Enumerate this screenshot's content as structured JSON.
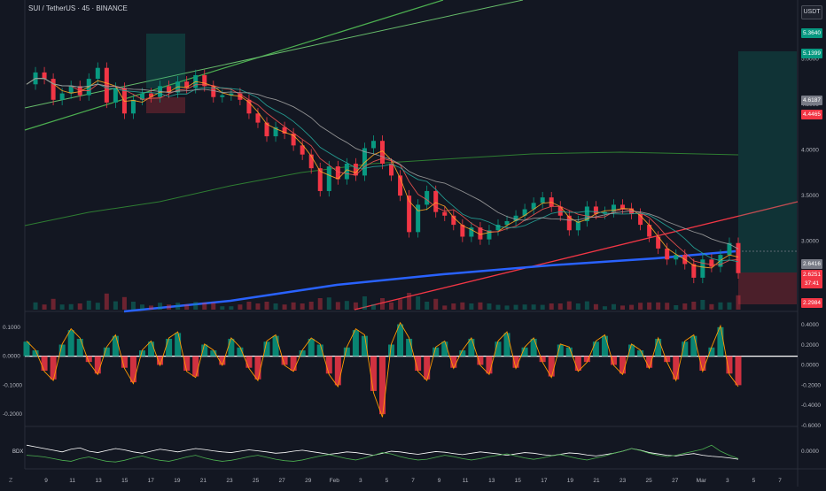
{
  "header": {
    "title": "SUI / TetherUS · 45 · BINANCE",
    "currency": "USDT"
  },
  "badges": [
    {
      "text": "5.3640",
      "color": "#089981"
    },
    {
      "text": "5.1399",
      "color": "#089981"
    },
    {
      "text": "4.6187",
      "color": "#787b86"
    },
    {
      "text": "4.4465",
      "color": "#f23645"
    },
    {
      "text": "2.6416",
      "color": "#787b86"
    },
    {
      "text": "2.6251",
      "color": "#f23645"
    },
    {
      "text": "37:41",
      "color": "#f23645"
    },
    {
      "text": "2.2984",
      "color": "#f23645"
    }
  ],
  "colors": {
    "background": "#131722",
    "up": "#089981",
    "down": "#f23645",
    "blue_line": "#2962ff",
    "green_line": "#4caf50"
  },
  "chart_data": [
    {
      "type": "line",
      "panel": "price",
      "x_tick_labels": [
        "9",
        "11",
        "13",
        "15",
        "17",
        "19",
        "21",
        "23",
        "25",
        "27",
        "29",
        "Feb",
        "3",
        "5",
        "7",
        "9",
        "11",
        "13",
        "15",
        "17",
        "19",
        "21",
        "23",
        "25",
        "27",
        "Mar",
        "3",
        "5",
        "7"
      ],
      "y_tick_labels": [
        "5.0000",
        "4.5000",
        "4.0000",
        "3.5000",
        "3.0000"
      ],
      "y_range": [
        2.25,
        5.45
      ],
      "series": [
        {
          "values": [
            4.72,
            4.85,
            4.78,
            4.55,
            4.62,
            4.7,
            4.6,
            4.78,
            4.9,
            4.52,
            4.68,
            4.4,
            4.55,
            4.62,
            4.58,
            4.7,
            4.63,
            4.75,
            4.68,
            4.82,
            4.7,
            4.58,
            4.6,
            4.62,
            4.55,
            4.4,
            4.3,
            4.15,
            4.25,
            4.18,
            4.05,
            3.95,
            3.8,
            3.55,
            3.82,
            3.68,
            3.85,
            3.72,
            4.02,
            4.1,
            3.85,
            3.72,
            3.5,
            3.1,
            3.4,
            3.55,
            3.32,
            3.28,
            3.18,
            3.05,
            3.15,
            3.02,
            3.12,
            3.18,
            3.22,
            3.28,
            3.35,
            3.42,
            3.48,
            3.38,
            3.28,
            3.12,
            3.22,
            3.38,
            3.3,
            3.32,
            3.4,
            3.36,
            3.3,
            3.18,
            3.05,
            2.92,
            2.8,
            2.85,
            2.75,
            2.6,
            2.8,
            2.72,
            2.85,
            2.98,
            2.65
          ]
        }
      ],
      "annotations": [
        "5.0000",
        "2.6416",
        "2.6251"
      ]
    },
    {
      "type": "bar",
      "panel": "oscillator",
      "y_tick_labels_left": [
        "0.1000",
        "0.0000",
        "-0.1000",
        "-0.2000"
      ],
      "y_tick_labels_right": [
        "0.4000",
        "0.2000",
        "0.0000",
        "-0.2000",
        "-0.4000",
        "-0.6000"
      ],
      "y_range": [
        -0.23,
        0.13
      ],
      "values": [
        0.05,
        0.02,
        -0.05,
        -0.08,
        0.04,
        0.09,
        0.06,
        -0.02,
        -0.06,
        0.03,
        0.07,
        -0.04,
        -0.09,
        0.02,
        0.05,
        -0.03,
        0.06,
        0.08,
        -0.05,
        -0.07,
        0.04,
        0.02,
        -0.03,
        0.06,
        0.03,
        -0.04,
        -0.08,
        0.05,
        0.07,
        -0.03,
        -0.05,
        0.02,
        0.06,
        0.04,
        -0.06,
        -0.1,
        0.03,
        0.09,
        0.07,
        -0.12,
        -0.2,
        0.04,
        0.11,
        0.06,
        -0.05,
        -0.08,
        0.03,
        0.05,
        -0.04,
        0.02,
        0.06,
        -0.03,
        -0.06,
        0.05,
        0.08,
        -0.04,
        0.03,
        0.06,
        -0.02,
        -0.07,
        0.04,
        0.03,
        -0.05,
        -0.02,
        0.05,
        0.07,
        -0.03,
        -0.06,
        0.04,
        0.02,
        -0.04,
        0.06,
        -0.02,
        -0.08,
        0.05,
        0.07,
        -0.05,
        0.03,
        0.1,
        -0.06,
        -0.1
      ]
    },
    {
      "type": "line",
      "panel": "lower",
      "label": "BDX",
      "y_tick_labels_right": [
        "0.0000"
      ],
      "series": [
        {
          "values": [
            0.6,
            0.55,
            0.5,
            0.45,
            0.4,
            0.48,
            0.52,
            0.42,
            0.38,
            0.44,
            0.5,
            0.46,
            0.4,
            0.36,
            0.42,
            0.48,
            0.44,
            0.4,
            0.45,
            0.5,
            0.47,
            0.43,
            0.4,
            0.38,
            0.42,
            0.46,
            0.43,
            0.4,
            0.36,
            0.38,
            0.42,
            0.45,
            0.41,
            0.37,
            0.33,
            0.36,
            0.4,
            0.38,
            0.34,
            0.3,
            0.36,
            0.42,
            0.4,
            0.36,
            0.33,
            0.37,
            0.41,
            0.39,
            0.35,
            0.32,
            0.36,
            0.4,
            0.37,
            0.34,
            0.3,
            0.34,
            0.38,
            0.36,
            0.32,
            0.29,
            0.33,
            0.37,
            0.35,
            0.31,
            0.28,
            0.32,
            0.36,
            0.42,
            0.5,
            0.45,
            0.38,
            0.34,
            0.3,
            0.28,
            0.32,
            0.35,
            0.3,
            0.27,
            0.25,
            0.22,
            0.18
          ]
        },
        {
          "values": [
            0.3,
            0.28,
            0.25,
            0.2,
            0.15,
            0.12,
            0.2,
            0.25,
            0.18,
            0.12,
            0.1,
            0.15,
            0.22,
            0.28,
            0.2,
            0.15,
            0.12,
            0.18,
            0.25,
            0.3,
            0.22,
            0.16,
            0.12,
            0.15,
            0.2,
            0.26,
            0.3,
            0.24,
            0.18,
            0.14,
            0.12,
            0.16,
            0.22,
            0.28,
            0.32,
            0.26,
            0.2,
            0.16,
            0.22,
            0.3,
            0.38,
            0.34,
            0.26,
            0.2,
            0.16,
            0.18,
            0.24,
            0.3,
            0.26,
            0.2,
            0.16,
            0.2,
            0.26,
            0.3,
            0.34,
            0.28,
            0.22,
            0.18,
            0.22,
            0.28,
            0.32,
            0.26,
            0.2,
            0.16,
            0.22,
            0.28,
            0.36,
            0.42,
            0.5,
            0.44,
            0.36,
            0.3,
            0.26,
            0.3,
            0.36,
            0.42,
            0.48,
            0.6,
            0.42,
            0.3,
            0.2
          ]
        }
      ]
    }
  ]
}
